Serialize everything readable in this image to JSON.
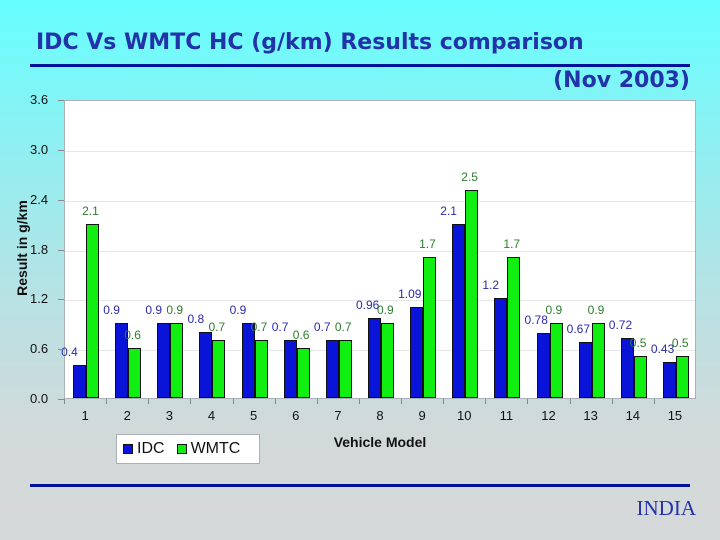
{
  "slide": {
    "title": "IDC Vs WMTC HC (g/km) Results comparison",
    "subtitle": "(Nov 2003)",
    "footer": "INDIA"
  },
  "colors": {
    "idc": "#0a14d8",
    "wmtc": "#11ee11",
    "title": "#2233aa",
    "rule": "#00119a"
  },
  "chart_data": {
    "type": "bar",
    "title": "IDC Vs WMTC HC (g/km) Results comparison",
    "subtitle": "(Nov 2003)",
    "xlabel": "Vehicle Model",
    "ylabel": "Result in g/km",
    "ylim": [
      0,
      3.6
    ],
    "yticks": [
      "0.0",
      "0.6",
      "1.2",
      "1.8",
      "2.4",
      "3.0",
      "3.6"
    ],
    "grid": true,
    "legend_position": "bottom-left",
    "categories": [
      "1",
      "2",
      "3",
      "4",
      "5",
      "6",
      "7",
      "8",
      "9",
      "10",
      "11",
      "12",
      "13",
      "14",
      "15"
    ],
    "series": [
      {
        "name": "IDC",
        "color": "#0a14d8",
        "values": [
          0.4,
          0.9,
          0.9,
          0.8,
          0.9,
          0.7,
          0.7,
          0.96,
          1.09,
          2.1,
          1.2,
          0.78,
          0.67,
          0.72,
          0.43
        ],
        "labels": [
          "0.4",
          "0.9",
          "0.9",
          "0.8",
          "0.9",
          "0.7",
          "0.7",
          "0.96",
          "1.09",
          "2.1",
          "1.2",
          "0.78",
          "0.67",
          "0.72",
          "0.43"
        ]
      },
      {
        "name": "WMTC",
        "color": "#11ee11",
        "values": [
          2.1,
          0.6,
          0.9,
          0.7,
          0.7,
          0.6,
          0.7,
          0.9,
          1.7,
          2.5,
          1.7,
          0.9,
          0.9,
          0.5,
          0.5
        ],
        "labels": [
          "2.1",
          "0.6",
          "0.9",
          "0.7",
          "0.7",
          "0.6",
          "0.7",
          "0.9",
          "1.7",
          "2.5",
          "1.7",
          "0.9",
          "0.9",
          "0.5",
          "0.5"
        ]
      }
    ]
  }
}
